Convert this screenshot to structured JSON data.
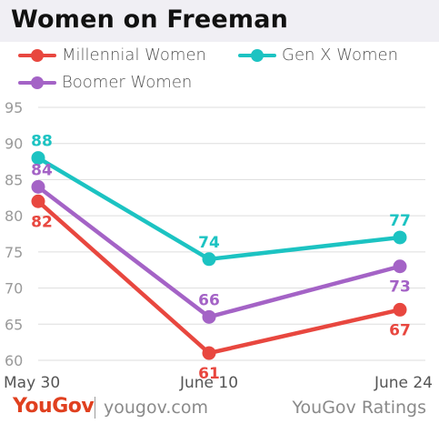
{
  "title": "Women on Freeman",
  "footer": {
    "logo": "YouGov",
    "site": "yougov.com",
    "ratings": "YouGov Ratings"
  },
  "colors": {
    "millennial": "#e8473f",
    "genx": "#1cc3c2",
    "boomer": "#a463c6",
    "grid": "#dddddd",
    "tick": "#9a9a9a"
  },
  "chart_data": {
    "type": "line",
    "title": "Women on Freeman",
    "x": [
      "May 30",
      "June 10",
      "June 24"
    ],
    "ylim": [
      60,
      95
    ],
    "yticks": [
      60,
      65,
      70,
      75,
      80,
      85,
      90,
      95
    ],
    "grid": true,
    "legend_position": "top",
    "series": [
      {
        "name": "Millennial Women",
        "color": "#e8473f",
        "values": [
          82,
          61,
          67
        ]
      },
      {
        "name": "Gen X Women",
        "color": "#1cc3c2",
        "values": [
          88,
          74,
          77
        ]
      },
      {
        "name": "Boomer Women",
        "color": "#a463c6",
        "values": [
          84,
          66,
          73
        ]
      }
    ]
  }
}
